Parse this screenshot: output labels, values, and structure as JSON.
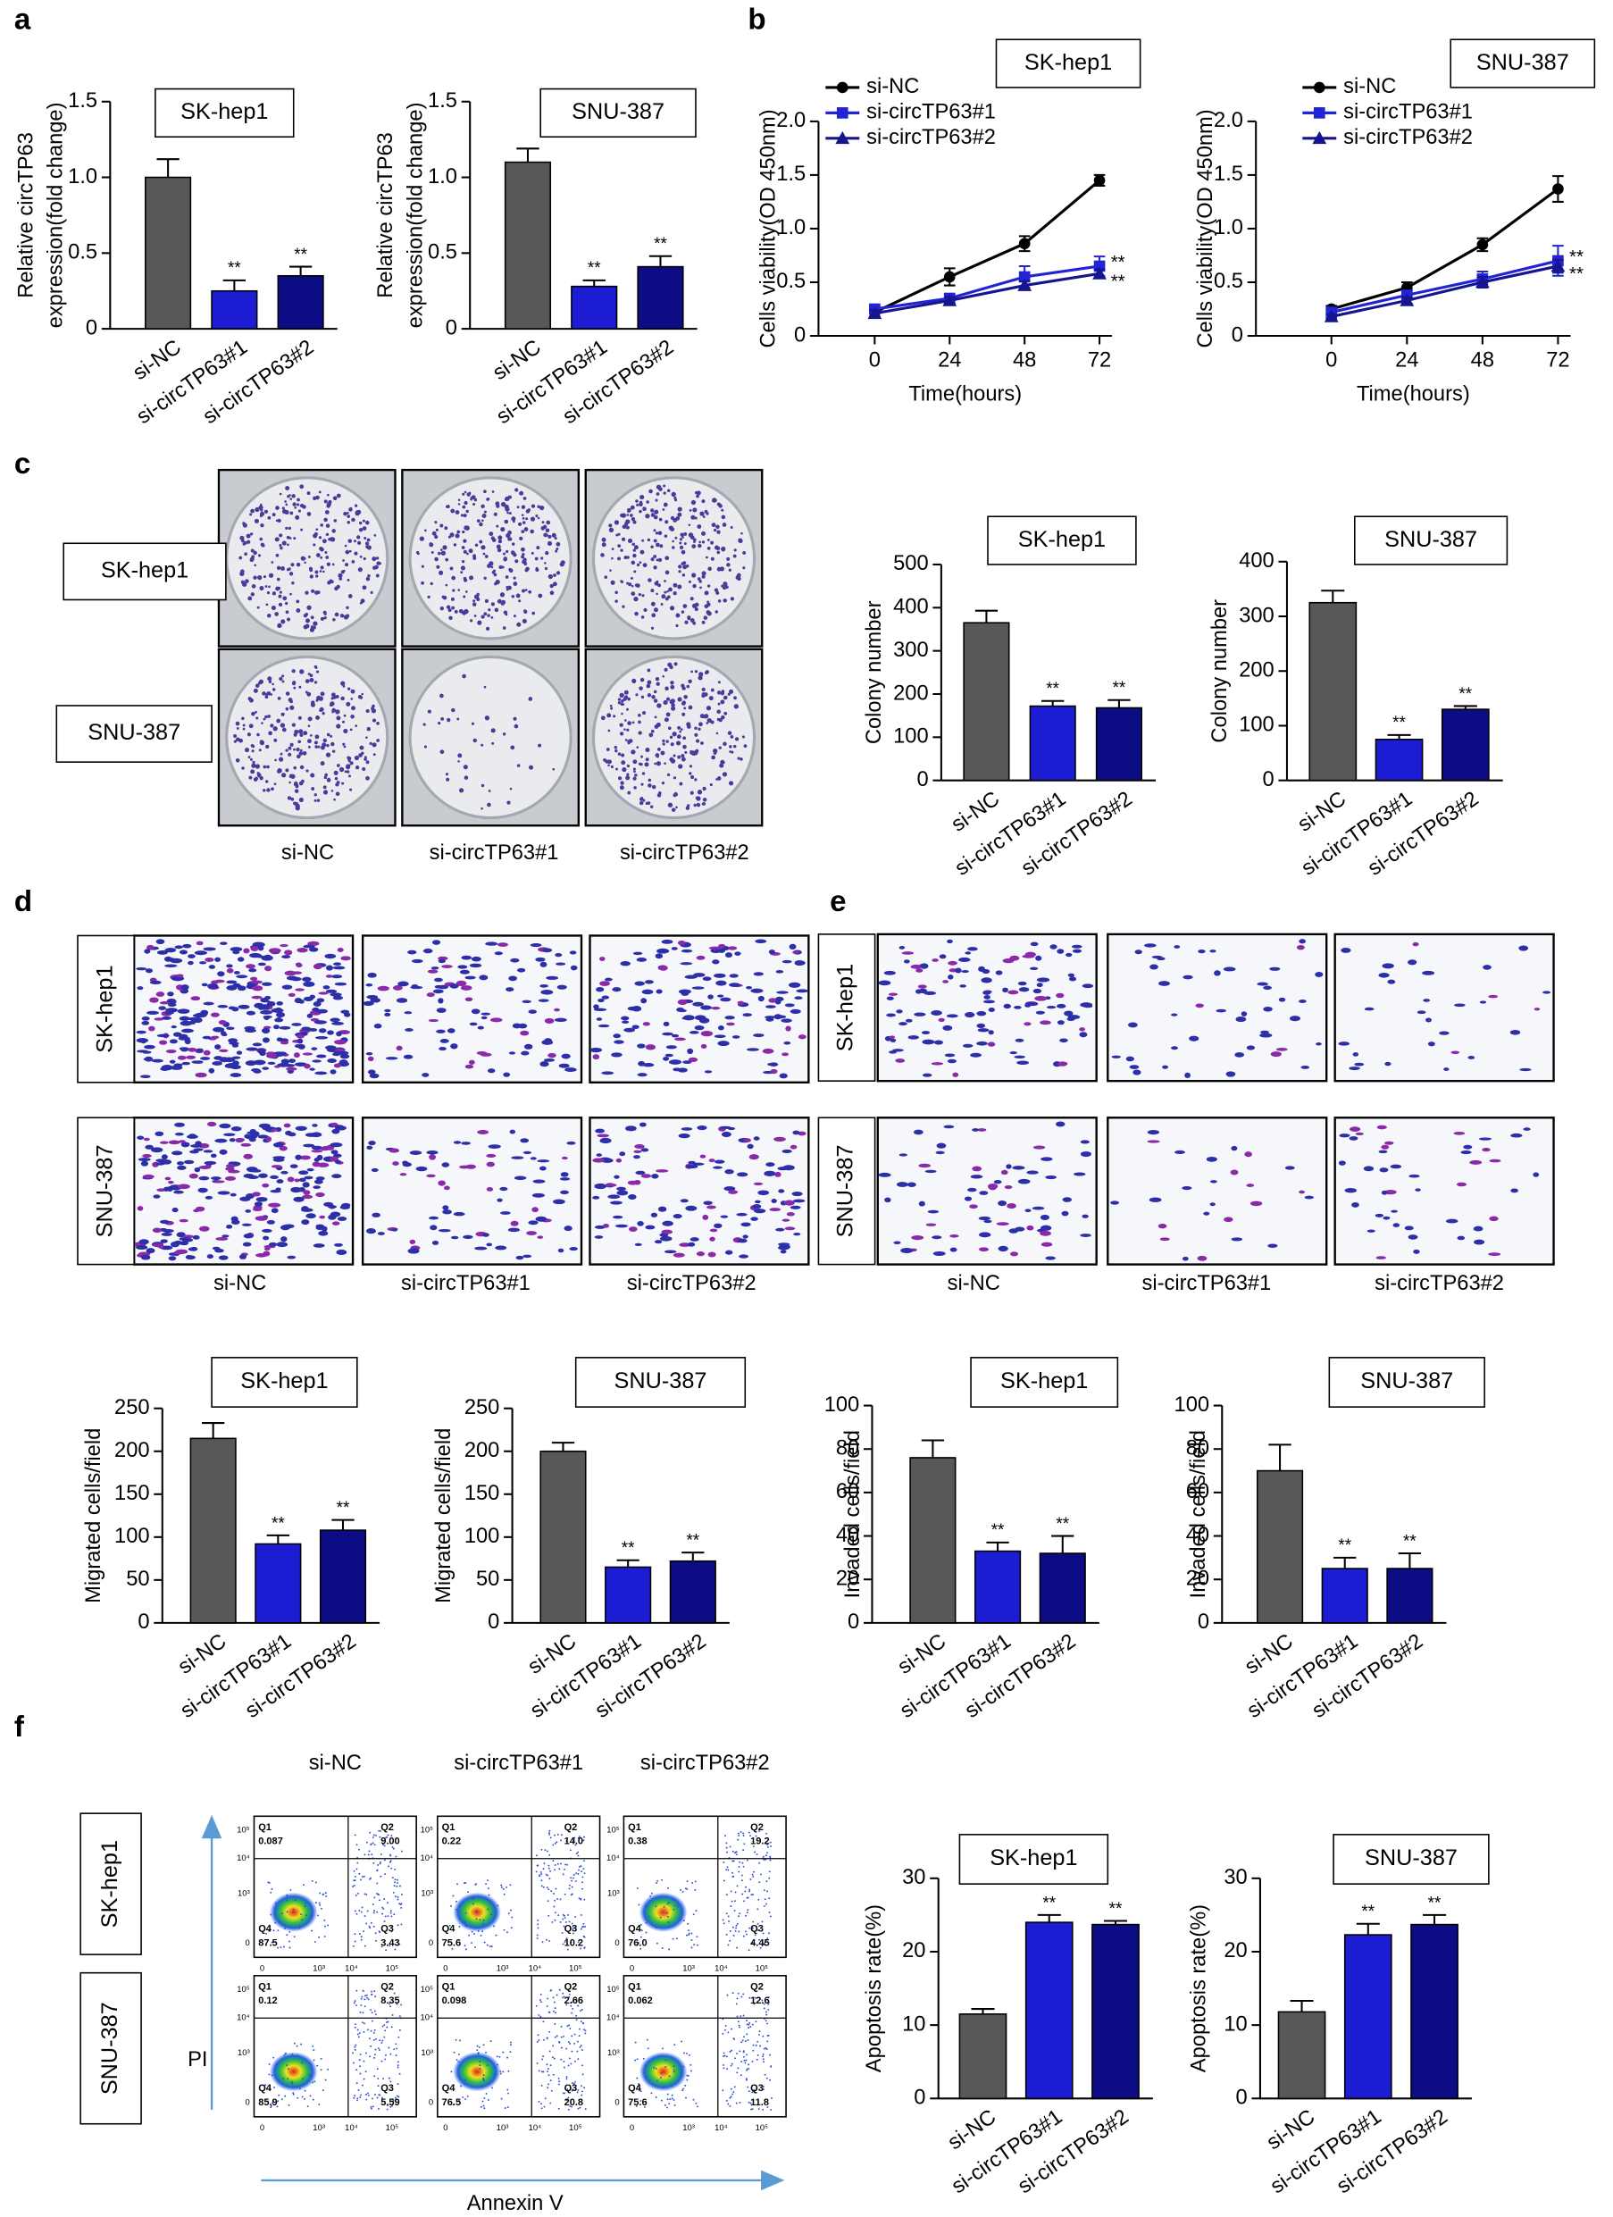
{
  "panel_labels": [
    "a",
    "b",
    "c",
    "d",
    "e",
    "f"
  ],
  "chart_data": [
    {
      "type": "bar",
      "title": "SK-hep1",
      "ylabel": [
        "Relative circTP63",
        "expression(fold change)"
      ],
      "categories": [
        "si-NC",
        "si-circTP63#1",
        "si-circTP63#2"
      ],
      "values": [
        1.0,
        0.25,
        0.35
      ],
      "errors": [
        0.12,
        0.07,
        0.06
      ],
      "colors": [
        "#585858",
        "#1c1cd2",
        "#0c0c84"
      ],
      "significance": [
        null,
        "**",
        "**"
      ],
      "ylim": [
        0,
        1.5
      ],
      "yticks": [
        0,
        0.5,
        {
          "value": 1,
          "label": "1.0"
        },
        1.5
      ]
    },
    {
      "type": "bar",
      "title": "SNU-387",
      "ylabel": [
        "Relative circTP63",
        "expression(fold change)"
      ],
      "categories": [
        "si-NC",
        "si-circTP63#1",
        "si-circTP63#2"
      ],
      "values": [
        1.1,
        0.28,
        0.41
      ],
      "errors": [
        0.09,
        0.04,
        0.07
      ],
      "colors": [
        "#585858",
        "#1c1cd2",
        "#0c0c84"
      ],
      "significance": [
        null,
        "**",
        "**"
      ],
      "ylim": [
        0,
        1.5
      ],
      "yticks": [
        0,
        0.5,
        {
          "value": 1,
          "label": "1.0"
        },
        1.5
      ]
    },
    {
      "type": "line",
      "title": "SK-hep1",
      "xlabel": "Time(hours)",
      "ylabel": "Cells viability(OD 450nm)",
      "x": [
        0,
        24,
        48,
        72
      ],
      "xlim": [
        -18,
        76
      ],
      "xticks": [
        0,
        24,
        48,
        72
      ],
      "ylim": [
        0,
        2
      ],
      "yticks": [
        0,
        0.5,
        {
          "value": 1,
          "label": "1.0"
        },
        1.5,
        {
          "value": 2,
          "label": "2.0"
        }
      ],
      "legend": "upper left",
      "series": [
        {
          "name": "si-NC",
          "color": "#000000",
          "marker": "circle",
          "values": [
            0.22,
            0.55,
            0.86,
            1.45
          ],
          "errors": [
            0.04,
            0.08,
            0.07,
            0.05
          ]
        },
        {
          "name": "si-circTP63#1",
          "color": "#2323d6",
          "marker": "square",
          "values": [
            0.25,
            0.35,
            0.55,
            0.65
          ],
          "errors": [
            0.03,
            0.04,
            0.1,
            0.09
          ],
          "end_label": "**"
        },
        {
          "name": "si-circTP63#2",
          "color": "#15158f",
          "marker": "triangle",
          "values": [
            0.21,
            0.33,
            0.47,
            0.58
          ],
          "errors": [
            0.03,
            0.03,
            0.04,
            0.04
          ],
          "end_label": "**"
        }
      ]
    },
    {
      "type": "line",
      "title": "SNU-387",
      "xlabel": "Time(hours)",
      "ylabel": "Cells viability(OD 450nm)",
      "x": [
        0,
        24,
        48,
        72
      ],
      "xlim": [
        -24,
        76
      ],
      "xticks": [
        0,
        24,
        48,
        72
      ],
      "ylim": [
        0,
        2
      ],
      "yticks": [
        0,
        0.5,
        {
          "value": 1,
          "label": "1.0"
        },
        1.5,
        {
          "value": 2,
          "label": "2.0"
        }
      ],
      "legend": "upper left",
      "series": [
        {
          "name": "si-NC",
          "color": "#000000",
          "marker": "circle",
          "values": [
            0.25,
            0.45,
            0.85,
            1.37
          ],
          "errors": [
            0.03,
            0.05,
            0.06,
            0.12
          ]
        },
        {
          "name": "si-circTP63#1",
          "color": "#2323d6",
          "marker": "square",
          "values": [
            0.22,
            0.38,
            0.53,
            0.7
          ],
          "errors": [
            0.03,
            0.04,
            0.07,
            0.14
          ],
          "end_label": "**"
        },
        {
          "name": "si-circTP63#2",
          "color": "#15158f",
          "marker": "triangle",
          "values": [
            0.18,
            0.33,
            0.5,
            0.65
          ],
          "errors": [
            0.02,
            0.03,
            0.05,
            0.06
          ],
          "end_label": "**"
        }
      ]
    },
    {
      "type": "bar",
      "title": "SK-hep1",
      "ylabel": "Colony number",
      "categories": [
        "si-NC",
        "si-circTP63#1",
        "si-circTP63#2"
      ],
      "values": [
        365,
        172,
        168
      ],
      "errors": [
        28,
        12,
        18
      ],
      "colors": [
        "#585858",
        "#1c1cd2",
        "#0c0c84"
      ],
      "significance": [
        null,
        "**",
        "**"
      ],
      "ylim": [
        0,
        500
      ],
      "yticks": [
        0,
        100,
        200,
        300,
        400,
        500
      ]
    },
    {
      "type": "bar",
      "title": "SNU-387",
      "ylabel": "Colony number",
      "categories": [
        "si-NC",
        "si-circTP63#1",
        "si-circTP63#2"
      ],
      "values": [
        325,
        75,
        130
      ],
      "errors": [
        22,
        8,
        6
      ],
      "colors": [
        "#585858",
        "#1c1cd2",
        "#0c0c84"
      ],
      "significance": [
        null,
        "**",
        "**"
      ],
      "ylim": [
        0,
        400
      ],
      "yticks": [
        0,
        100,
        200,
        300,
        400
      ]
    },
    {
      "type": "bar",
      "title": "SK-hep1",
      "ylabel": "Migrated cells/field",
      "categories": [
        "si-NC",
        "si-circTP63#1",
        "si-circTP63#2"
      ],
      "values": [
        215,
        92,
        108
      ],
      "errors": [
        18,
        10,
        12
      ],
      "colors": [
        "#585858",
        "#1c1cd2",
        "#0c0c84"
      ],
      "significance": [
        null,
        "**",
        "**"
      ],
      "ylim": [
        0,
        250
      ],
      "yticks": [
        0,
        50,
        100,
        150,
        200,
        250
      ]
    },
    {
      "type": "bar",
      "title": "SNU-387",
      "ylabel": "Migrated cells/field",
      "categories": [
        "si-NC",
        "si-circTP63#1",
        "si-circTP63#2"
      ],
      "values": [
        200,
        65,
        72
      ],
      "errors": [
        10,
        8,
        10
      ],
      "colors": [
        "#585858",
        "#1c1cd2",
        "#0c0c84"
      ],
      "significance": [
        null,
        "**",
        "**"
      ],
      "ylim": [
        0,
        250
      ],
      "yticks": [
        0,
        50,
        100,
        150,
        200,
        250
      ]
    },
    {
      "type": "bar",
      "title": "SK-hep1",
      "ylabel": "Invaded cells/field",
      "categories": [
        "si-NC",
        "si-circTP63#1",
        "si-circTP63#2"
      ],
      "values": [
        76,
        33,
        32
      ],
      "errors": [
        8,
        4,
        8
      ],
      "colors": [
        "#585858",
        "#1c1cd2",
        "#0c0c84"
      ],
      "significance": [
        null,
        "**",
        "**"
      ],
      "ylim": [
        0,
        100
      ],
      "yticks": [
        0,
        20,
        40,
        60,
        80,
        100
      ]
    },
    {
      "type": "bar",
      "title": "SNU-387",
      "ylabel": "Invaded cells/field",
      "categories": [
        "si-NC",
        "si-circTP63#1",
        "si-circTP63#2"
      ],
      "values": [
        70,
        25,
        25
      ],
      "errors": [
        12,
        5,
        7
      ],
      "colors": [
        "#585858",
        "#1c1cd2",
        "#0c0c84"
      ],
      "significance": [
        null,
        "**",
        "**"
      ],
      "ylim": [
        0,
        100
      ],
      "yticks": [
        0,
        20,
        40,
        60,
        80,
        100
      ]
    },
    {
      "type": "bar",
      "title": "SK-hep1",
      "ylabel": "Apoptosis rate(%)",
      "categories": [
        "si-NC",
        "si-circTP63#1",
        "si-circTP63#2"
      ],
      "values": [
        11.5,
        24,
        23.7
      ],
      "errors": [
        0.7,
        1,
        0.5
      ],
      "colors": [
        "#585858",
        "#1c1cd2",
        "#0c0c84"
      ],
      "significance": [
        null,
        "**",
        "**"
      ],
      "ylim": [
        0,
        30
      ],
      "yticks": [
        0,
        10,
        20,
        30
      ]
    },
    {
      "type": "bar",
      "title": "SNU-387",
      "ylabel": "Apoptosis rate(%)",
      "categories": [
        "si-NC",
        "si-circTP63#1",
        "si-circTP63#2"
      ],
      "values": [
        11.8,
        22.3,
        23.7
      ],
      "errors": [
        1.5,
        1.5,
        1.3
      ],
      "colors": [
        "#585858",
        "#1c1cd2",
        "#0c0c84"
      ],
      "significance": [
        null,
        "**",
        "**"
      ],
      "ylim": [
        0,
        30
      ],
      "yticks": [
        0,
        10,
        20,
        30
      ]
    }
  ],
  "colony": {
    "rows": [
      "SK-hep1",
      "SNU-387"
    ],
    "columns": [
      "si-NC",
      "si-circTP63#1",
      "si-circTP63#2"
    ]
  },
  "migration": {
    "rows": [
      "SK-hep1",
      "SNU-387"
    ],
    "columns": [
      "si-NC",
      "si-circTP63#1",
      "si-circTP63#2"
    ]
  },
  "invasion": {
    "rows": [
      "SK-hep1",
      "SNU-387"
    ],
    "columns": [
      "si-NC",
      "si-circTP63#1",
      "si-circTP63#2"
    ]
  },
  "flow": {
    "rows": [
      "SK-hep1",
      "SNU-387"
    ],
    "columns": [
      "si-NC",
      "si-circTP63#1",
      "si-circTP63#2"
    ],
    "quadrant_labels": [
      "Q1",
      "Q2",
      "Q3",
      "Q4"
    ],
    "axis_ticks": [
      "0",
      "10³",
      "10⁴",
      "10⁵"
    ],
    "y_axis_label": "PI",
    "x_axis_label": "Annexin V",
    "plots": [
      [
        {
          "q1": "0.087",
          "q2": "9.00",
          "q3": "3.43",
          "q4": "87.5"
        },
        {
          "q1": "0.22",
          "q2": "14.0",
          "q3": "10.2",
          "q4": "75.6"
        },
        {
          "q1": "0.38",
          "q2": "19.2",
          "q3": "4.45",
          "q4": "76.0"
        }
      ],
      [
        {
          "q1": "0.12",
          "q2": "8.35",
          "q3": "5.59",
          "q4": "85.9"
        },
        {
          "q1": "0.098",
          "q2": "2.66",
          "q3": "20.8",
          "q4": "76.5"
        },
        {
          "q1": "0.062",
          "q2": "12.6",
          "q3": "11.8",
          "q4": "75.6"
        }
      ]
    ]
  }
}
